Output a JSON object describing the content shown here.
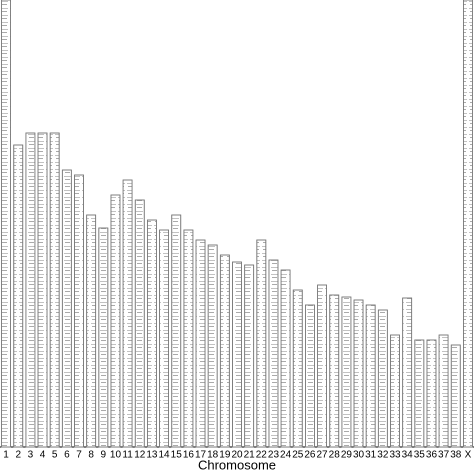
{
  "chart_data": {
    "type": "bar",
    "x_label": "Chromosome",
    "categories": [
      "1",
      "2",
      "3",
      "4",
      "5",
      "6",
      "7",
      "8",
      "9",
      "10",
      "11",
      "12",
      "13",
      "14",
      "15",
      "16",
      "17",
      "18",
      "19",
      "20",
      "21",
      "22",
      "23",
      "24",
      "25",
      "26",
      "27",
      "28",
      "29",
      "30",
      "31",
      "32",
      "33",
      "34",
      "35",
      "36",
      "37",
      "38",
      "X"
    ],
    "values": [
      447,
      302,
      314,
      314,
      314,
      277,
      272,
      232,
      219,
      252,
      267,
      247,
      227,
      217,
      232,
      217,
      207,
      202,
      192,
      185,
      182,
      207,
      187,
      177,
      157,
      142,
      162,
      152,
      150,
      147,
      142,
      137,
      112,
      149,
      107,
      107,
      112,
      102,
      447
    ],
    "color": "#ffffff"
  }
}
